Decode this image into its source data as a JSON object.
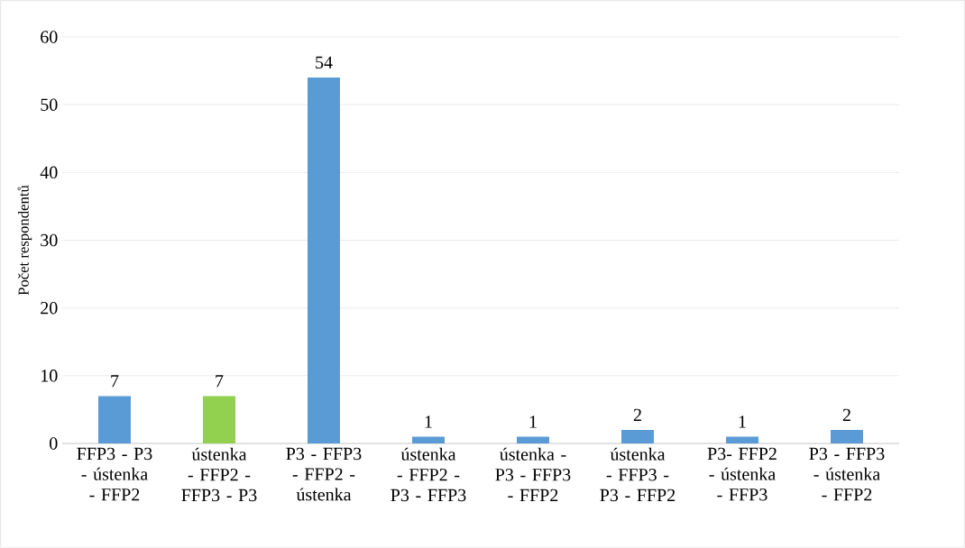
{
  "chart_data": {
    "type": "bar",
    "ylabel": "Počet respondentů",
    "categories": [
      "FFP3 - P3 - ústenka - FFP2",
      "ústenka - FFP2 - FFP3 - P3",
      "P3 - FFP3 - FFP2 - ústenka",
      "ústenka - FFP2 - P3 - FFP3",
      "ústenka - P3 - FFP3 - FFP2",
      "ústenka - FFP3 - P3 - FFP2",
      "P3- FFP2 - ústenka - FFP3",
      "P3 - FFP3 - ústenka - FFP2"
    ],
    "values": [
      7,
      7,
      54,
      1,
      1,
      2,
      1,
      2
    ],
    "colors": [
      "#5b9bd5",
      "#92d050",
      "#5b9bd5",
      "#5b9bd5",
      "#5b9bd5",
      "#5b9bd5",
      "#5b9bd5",
      "#5b9bd5"
    ],
    "ylim": [
      0,
      60
    ],
    "yticks": [
      0,
      10,
      20,
      30,
      40,
      50,
      60
    ],
    "grid": "y",
    "data_labels": true
  }
}
